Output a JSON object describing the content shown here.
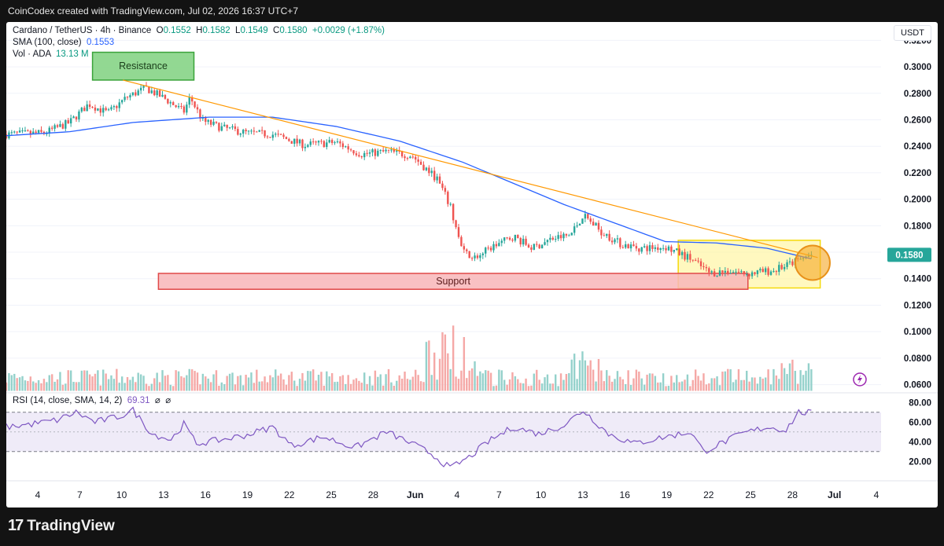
{
  "header": {
    "credit": "CoinCodex created with TradingView.com, Jul 02, 2026 16:37 UTC+7"
  },
  "legend": {
    "symbol": "Cardano / TetherUS · 4h · Binance",
    "o_label": "O",
    "o": "0.1552",
    "h_label": "H",
    "h": "0.1582",
    "l_label": "L",
    "l": "0.1549",
    "c_label": "C",
    "c": "0.1580",
    "change": "+0.0029 (+1.87%)",
    "sma_label": "SMA (100, close)",
    "sma_value": "0.1553",
    "vol_label": "Vol · ADA",
    "vol_value": "13.13 M"
  },
  "rsi_legend": {
    "label": "RSI (14, close, SMA, 14, 2)",
    "value": "69.31",
    "na1": "⌀",
    "na2": "⌀"
  },
  "currency": "USDT",
  "footer": {
    "brand": "TradingView",
    "logo_mark": "17"
  },
  "colors": {
    "up": "#26a69a",
    "down": "#ef5350",
    "sma": "#2962ff",
    "trendline": "#ff9800",
    "rsi": "#7e57c2",
    "support_fill": "#f8b6b9",
    "resistance_fill": "#7fd17f",
    "zone_fill": "#fff59d"
  },
  "chart_data": {
    "type": "candlestick",
    "symbol": "ADAUSDT",
    "timeframe": "4h",
    "price_axis": {
      "labels": [
        "0.3200",
        "0.3000",
        "0.2800",
        "0.2600",
        "0.2400",
        "0.2200",
        "0.2000",
        "0.1800",
        "0.1600",
        "0.1400",
        "0.1200",
        "0.1000",
        "0.0800",
        "0.0600"
      ],
      "min": 0.055,
      "max": 0.322
    },
    "last_price": "0.1580",
    "x_ticks": [
      "4",
      "7",
      "10",
      "13",
      "16",
      "19",
      "22",
      "25",
      "28",
      "Jun",
      "4",
      "7",
      "10",
      "13",
      "16",
      "19",
      "22",
      "25",
      "28",
      "Jul",
      "4"
    ],
    "bold_ticks": [
      "Jun",
      "Jul"
    ],
    "close_series": [
      {
        "t": 0,
        "v": 0.249
      },
      {
        "t": 3,
        "v": 0.25
      },
      {
        "t": 5,
        "v": 0.258
      },
      {
        "t": 6.5,
        "v": 0.272
      },
      {
        "t": 8,
        "v": 0.265
      },
      {
        "t": 9.5,
        "v": 0.277
      },
      {
        "t": 11,
        "v": 0.284
      },
      {
        "t": 12.5,
        "v": 0.276
      },
      {
        "t": 14,
        "v": 0.266
      },
      {
        "t": 14.5,
        "v": 0.277
      },
      {
        "t": 15.5,
        "v": 0.259
      },
      {
        "t": 17,
        "v": 0.254
      },
      {
        "t": 19,
        "v": 0.25
      },
      {
        "t": 21,
        "v": 0.249
      },
      {
        "t": 23.5,
        "v": 0.241
      },
      {
        "t": 26,
        "v": 0.243
      },
      {
        "t": 28,
        "v": 0.234
      },
      {
        "t": 30,
        "v": 0.236
      },
      {
        "t": 32,
        "v": 0.233
      },
      {
        "t": 34,
        "v": 0.215
      },
      {
        "t": 35,
        "v": 0.195
      },
      {
        "t": 36,
        "v": 0.16
      },
      {
        "t": 37,
        "v": 0.156
      },
      {
        "t": 38.5,
        "v": 0.165
      },
      {
        "t": 40,
        "v": 0.172
      },
      {
        "t": 41.5,
        "v": 0.163
      },
      {
        "t": 43,
        "v": 0.17
      },
      {
        "t": 44.5,
        "v": 0.173
      },
      {
        "t": 45.5,
        "v": 0.188
      },
      {
        "t": 47,
        "v": 0.175
      },
      {
        "t": 48.5,
        "v": 0.166
      },
      {
        "t": 50,
        "v": 0.163
      },
      {
        "t": 52,
        "v": 0.164
      },
      {
        "t": 54,
        "v": 0.155
      },
      {
        "t": 55.5,
        "v": 0.144
      },
      {
        "t": 57,
        "v": 0.146
      },
      {
        "t": 58.5,
        "v": 0.144
      },
      {
        "t": 60.5,
        "v": 0.146
      },
      {
        "t": 62,
        "v": 0.152
      },
      {
        "t": 63.5,
        "v": 0.158
      }
    ],
    "sma_100": [
      {
        "t": 0,
        "v": 0.248
      },
      {
        "t": 5,
        "v": 0.251
      },
      {
        "t": 10,
        "v": 0.258
      },
      {
        "t": 16,
        "v": 0.262
      },
      {
        "t": 21,
        "v": 0.262
      },
      {
        "t": 26,
        "v": 0.255
      },
      {
        "t": 31,
        "v": 0.244
      },
      {
        "t": 36,
        "v": 0.228
      },
      {
        "t": 40,
        "v": 0.212
      },
      {
        "t": 44,
        "v": 0.196
      },
      {
        "t": 48,
        "v": 0.182
      },
      {
        "t": 52,
        "v": 0.168
      },
      {
        "t": 56,
        "v": 0.167
      },
      {
        "t": 60,
        "v": 0.163
      },
      {
        "t": 63.5,
        "v": 0.155
      }
    ],
    "annotations": {
      "resistance": {
        "label": "Resistance",
        "y": [
          0.29,
          0.311
        ],
        "x": [
          6.8,
          14.8
        ]
      },
      "support": {
        "label": "Support",
        "y": [
          0.132,
          0.144
        ],
        "x": [
          12,
          58.5
        ]
      },
      "zone": {
        "y": [
          0.133,
          0.169
        ],
        "x": [
          53,
          64.2
        ]
      },
      "trendline": {
        "from": {
          "t": 9.2,
          "v": 0.29
        },
        "to": {
          "t": 64,
          "v": 0.156
        }
      }
    },
    "rsi": {
      "axis_labels": [
        "80.00",
        "60.00",
        "40.00",
        "20.00"
      ],
      "bands": [
        30,
        70
      ],
      "last": 69.31,
      "series": [
        {
          "t": 0,
          "v": 55
        },
        {
          "t": 2,
          "v": 58
        },
        {
          "t": 4,
          "v": 62
        },
        {
          "t": 5.5,
          "v": 70
        },
        {
          "t": 7,
          "v": 60
        },
        {
          "t": 9,
          "v": 66
        },
        {
          "t": 10,
          "v": 72
        },
        {
          "t": 11.5,
          "v": 48
        },
        {
          "t": 13,
          "v": 42
        },
        {
          "t": 14,
          "v": 58
        },
        {
          "t": 15,
          "v": 38
        },
        {
          "t": 17,
          "v": 42
        },
        {
          "t": 19,
          "v": 47
        },
        {
          "t": 21,
          "v": 55
        },
        {
          "t": 22.5,
          "v": 36
        },
        {
          "t": 25,
          "v": 45
        },
        {
          "t": 27.5,
          "v": 34
        },
        {
          "t": 30,
          "v": 50
        },
        {
          "t": 32,
          "v": 38
        },
        {
          "t": 33.5,
          "v": 28
        },
        {
          "t": 35,
          "v": 13
        },
        {
          "t": 36.5,
          "v": 24
        },
        {
          "t": 38,
          "v": 40
        },
        {
          "t": 40,
          "v": 55
        },
        {
          "t": 42,
          "v": 48
        },
        {
          "t": 44,
          "v": 57
        },
        {
          "t": 45.5,
          "v": 72
        },
        {
          "t": 47.5,
          "v": 48
        },
        {
          "t": 49.5,
          "v": 38
        },
        {
          "t": 52,
          "v": 45
        },
        {
          "t": 54,
          "v": 50
        },
        {
          "t": 55,
          "v": 30
        },
        {
          "t": 56,
          "v": 36
        },
        {
          "t": 58,
          "v": 48
        },
        {
          "t": 60,
          "v": 55
        },
        {
          "t": 61.5,
          "v": 52
        },
        {
          "t": 62.5,
          "v": 70
        },
        {
          "t": 63.5,
          "v": 69.31
        }
      ]
    }
  }
}
